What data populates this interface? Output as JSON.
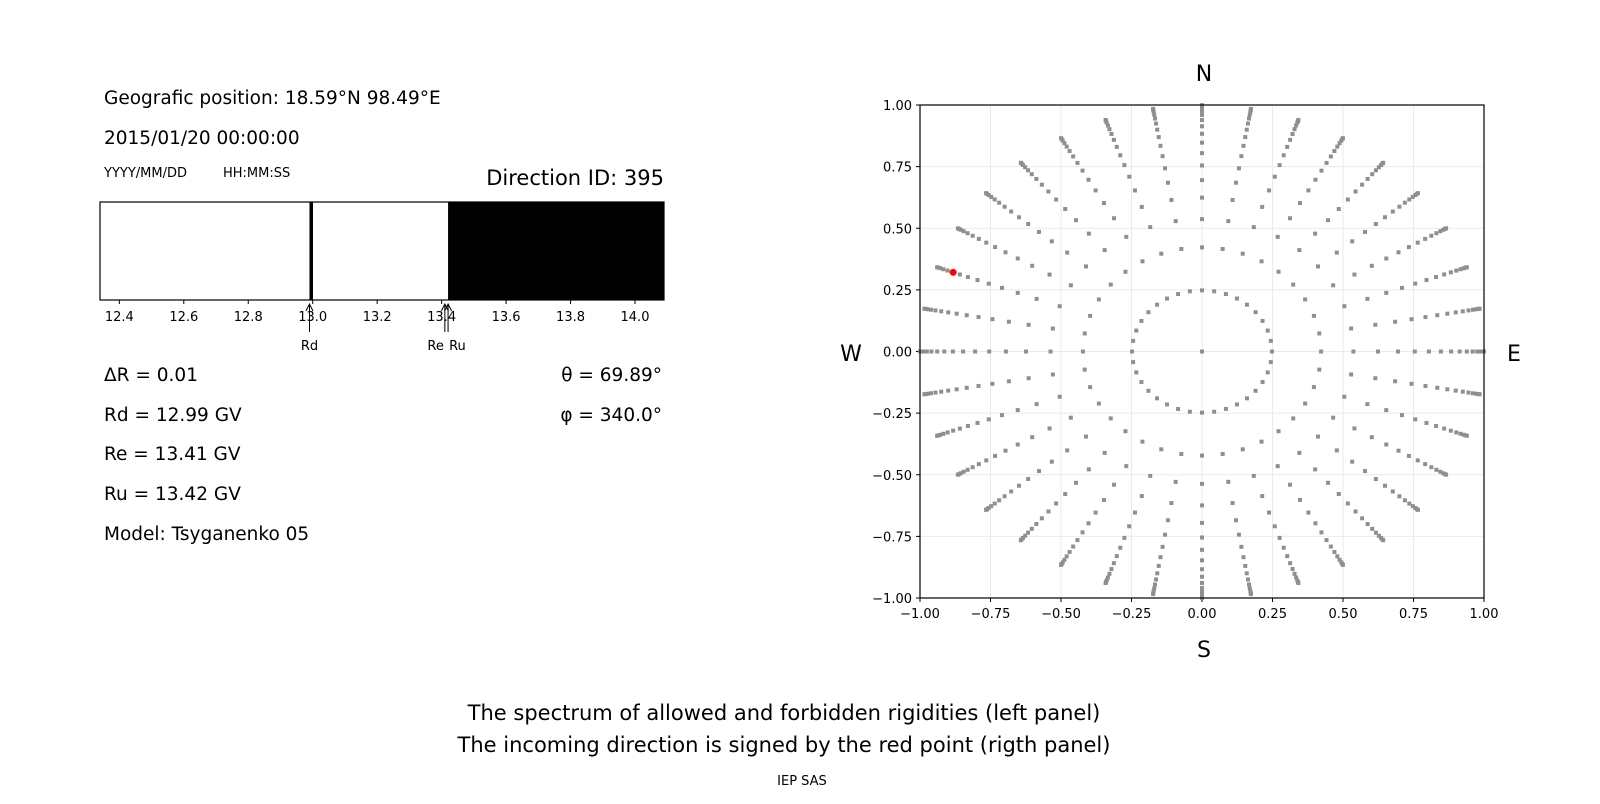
{
  "header": {
    "position": "Geografic position: 18.59°N 98.49°E",
    "datetime": "2015/01/20 00:00:00",
    "date_format": "YYYY/MM/DD",
    "time_format": "HH:MM:SS",
    "direction_id": "Direction ID: 395"
  },
  "results": {
    "delta_r": "ΔR = 0.01",
    "rd": "Rd = 12.99 GV",
    "re": "Re = 13.41 GV",
    "ru": "Ru = 13.42 GV",
    "model": "Model: Tsyganenko 05",
    "theta": "θ = 69.89°",
    "phi": "φ = 340.0°"
  },
  "footer": {
    "line1": "The spectrum of allowed and forbidden rigidities (left panel)",
    "line2": "The incoming direction is signed by the red point (rigth panel)",
    "credit": "IEP SAS"
  },
  "chart_data": [
    {
      "type": "bar",
      "description_role": "rigidity spectrum (white = allowed, black = forbidden)",
      "xlim": [
        12.34,
        14.09
      ],
      "xticks": [
        "12.4",
        "12.6",
        "12.8",
        "13.0",
        "13.2",
        "13.4",
        "13.6",
        "13.8",
        "14.0"
      ],
      "forbidden_bands": [
        [
          12.99,
          13.0
        ],
        [
          13.42,
          14.09
        ]
      ],
      "markers": [
        {
          "label": "Rd",
          "value": 12.99
        },
        {
          "label": "Re",
          "value": 13.41
        },
        {
          "label": "Ru",
          "value": 13.42
        }
      ],
      "colors": {
        "allowed": "#ffffff",
        "forbidden": "#000000"
      }
    },
    {
      "type": "scatter",
      "xlim": [
        -1.0,
        1.0
      ],
      "ylim": [
        -1.0,
        1.0
      ],
      "xticks": [
        "−1.00",
        "−0.75",
        "−0.50",
        "−0.25",
        "0.00",
        "0.25",
        "0.50",
        "0.75",
        "1.00"
      ],
      "yticks": [
        "1.00",
        "0.75",
        "0.50",
        "0.25",
        "0.00",
        "−0.25",
        "−0.50",
        "−0.75",
        "−1.00"
      ],
      "grid": true,
      "compass": {
        "top": "N",
        "bottom": "S",
        "left": "W",
        "right": "E"
      },
      "direction_grid": {
        "azimuths_deg": [
          0,
          10,
          20,
          30,
          40,
          50,
          60,
          70,
          80,
          90,
          100,
          110,
          120,
          130,
          140,
          150,
          160,
          170,
          180,
          190,
          200,
          210,
          220,
          230,
          240,
          250,
          260,
          270,
          280,
          290,
          300,
          310,
          320,
          330,
          340,
          350
        ],
        "zenith_deg": [
          0,
          14.36,
          24.98,
          32.48,
          38.62,
          44.05,
          48.99,
          53.58,
          57.91,
          62.05,
          66.03,
          69.89,
          73.67,
          77.36,
          81.01,
          84.62,
          88.21
        ]
      },
      "selected": {
        "theta_deg": 69.89,
        "phi_deg": 340.0
      },
      "colors": {
        "grid_points": "#8f8f8f",
        "selected": "#ff0000"
      }
    }
  ]
}
